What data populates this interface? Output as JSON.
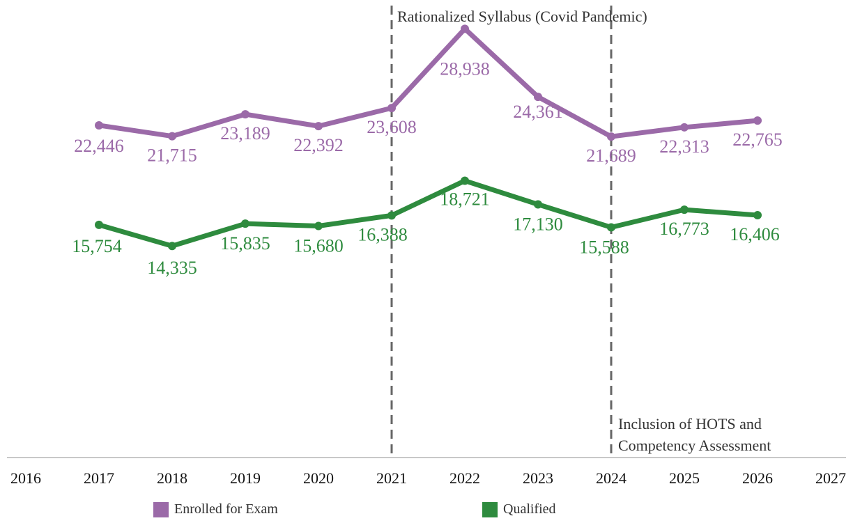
{
  "chart_data": {
    "type": "line",
    "title": "",
    "xlabel": "",
    "ylabel": "",
    "x_ticks": [
      "2016",
      "2017",
      "2018",
      "2019",
      "2020",
      "2021",
      "2022",
      "2023",
      "2024",
      "2025",
      "2026",
      "2027"
    ],
    "x": [
      2017,
      2018,
      2019,
      2020,
      2021,
      2022,
      2023,
      2024,
      2025,
      2026
    ],
    "series": [
      {
        "name": "Enrolled for Exam",
        "color": "#9b6aa8",
        "values": [
          22446,
          21715,
          23189,
          22392,
          23608,
          28938,
          24361,
          21689,
          22313,
          22765
        ],
        "labels": [
          "22,446",
          "21,715",
          "23,189",
          "22,392",
          "23,608",
          "28,938",
          "24,361",
          "21,689",
          "22,313",
          "22,765"
        ]
      },
      {
        "name": "Qualified",
        "color": "#2e8b3e",
        "values": [
          15754,
          14335,
          15835,
          15680,
          16388,
          18721,
          17130,
          15588,
          16773,
          16406
        ],
        "labels": [
          "15,754",
          "14,335",
          "15,835",
          "15,680",
          "16,388",
          "18,721",
          "17,130",
          "15,588",
          "16,773",
          "16,406"
        ]
      }
    ],
    "annotations": [
      {
        "x": 2021,
        "text": "Rationalized Syllabus (Covid Pandemic)"
      },
      {
        "x": 2024,
        "text": [
          "Inclusion of HOTS and",
          "Competency Assessment"
        ]
      }
    ],
    "legend_position": "bottom",
    "grid": false
  }
}
